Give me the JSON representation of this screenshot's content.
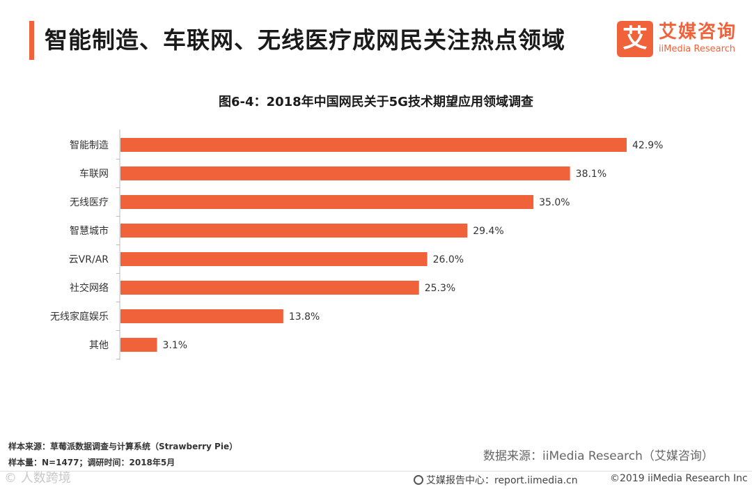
{
  "header": {
    "title": "智能制造、车联网、无线医疗成网民关注热点领域"
  },
  "logo": {
    "mark": "艾",
    "name_cn": "艾媒咨询",
    "name_en": "iiMedia Research"
  },
  "chart_data": {
    "type": "bar",
    "orientation": "horizontal",
    "title": "图6-4：2018年中国网民关于5G技术期望应用领域调查",
    "categories": [
      "智能制造",
      "车联网",
      "无线医疗",
      "智慧城市",
      "云VR/AR",
      "社交网络",
      "无线家庭娱乐",
      "其他"
    ],
    "values": [
      42.9,
      38.1,
      35.0,
      29.4,
      26.0,
      25.3,
      13.8,
      3.1
    ],
    "value_labels": [
      "42.9%",
      "38.1%",
      "35.0%",
      "29.4%",
      "26.0%",
      "25.3%",
      "13.8%",
      "3.1%"
    ],
    "unit": "%",
    "xlim": [
      0,
      45
    ],
    "bar_color": "#f0623a",
    "xlabel": "",
    "ylabel": ""
  },
  "notes": {
    "sample_source": "样本来源：草莓派数据调查与计算系统（Strawberry  Pie）",
    "sample_size": "样本量：N=1477；调研时间：2018年5月"
  },
  "source": "数据来源：iiMedia Research（艾媒咨询）",
  "footer": {
    "watermark": "© 人数跨境",
    "report_center": "艾媒报告中心：report.iimedia.cn",
    "copyright": "©2019  iiMedia Research Inc"
  },
  "colors": {
    "accent": "#f0623a"
  }
}
